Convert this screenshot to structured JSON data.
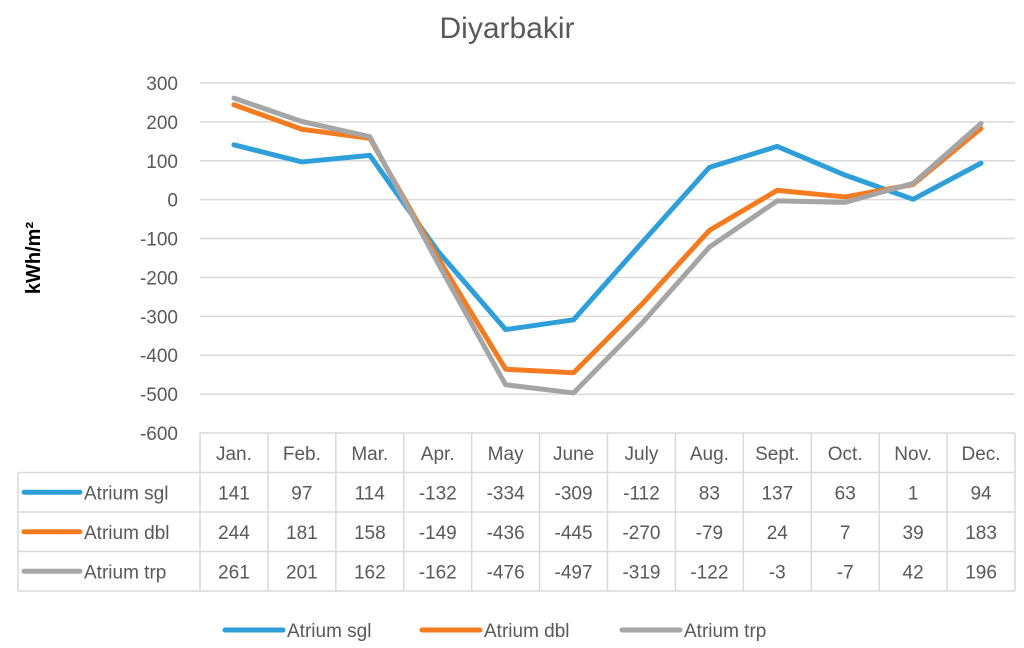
{
  "chart_data": {
    "type": "line",
    "title": "Diyarbakir",
    "ylabel": "kWh/m²",
    "xlabel": "",
    "ylim": [
      -600,
      300
    ],
    "ytick_step": 100,
    "grid": true,
    "legend_position": "bottom",
    "data_table": true,
    "categories": [
      "Jan.",
      "Feb.",
      "Mar.",
      "Apr.",
      "May",
      "June",
      "July",
      "Aug.",
      "Sept.",
      "Oct.",
      "Nov.",
      "Dec."
    ],
    "series": [
      {
        "name": "Atrium sgl",
        "color": "#2E9FD8",
        "values": [
          141,
          97,
          114,
          -132,
          -334,
          -309,
          -112,
          83,
          137,
          63,
          1,
          94
        ]
      },
      {
        "name": "Atrium dbl",
        "color": "#F47B20",
        "values": [
          244,
          181,
          158,
          -149,
          -436,
          -445,
          -270,
          -79,
          24,
          7,
          39,
          183
        ]
      },
      {
        "name": "Atrium trp",
        "color": "#A5A5A5",
        "values": [
          261,
          201,
          162,
          -162,
          -476,
          -497,
          -319,
          -122,
          -3,
          -7,
          42,
          196
        ]
      }
    ]
  }
}
